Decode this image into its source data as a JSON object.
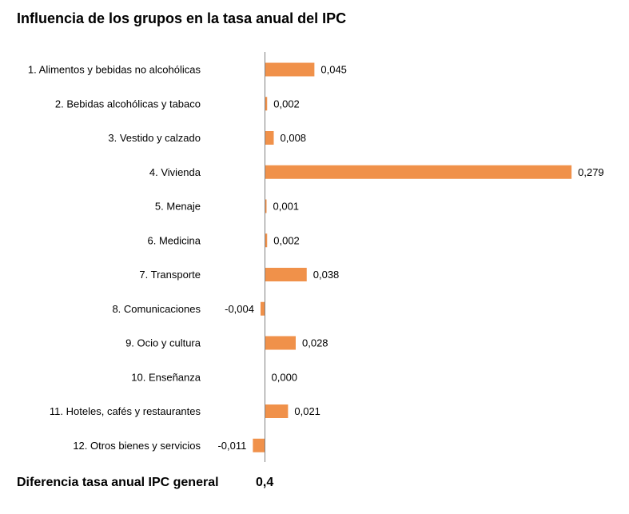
{
  "title": "Influencia de los grupos en la tasa anual del IPC",
  "footer": {
    "label": "Diferencia tasa anual IPC general",
    "value": "0,4"
  },
  "colors": {
    "bar": "#F0914A",
    "axis": "#7F7F7F"
  },
  "chart_data": {
    "type": "bar",
    "orientation": "horizontal",
    "categories": [
      "1. Alimentos y bebidas no alcohólicas",
      "2. Bebidas alcohólicas y tabaco",
      "3. Vestido y calzado",
      "4. Vivienda",
      "5. Menaje",
      "6. Medicina",
      "7. Transporte",
      "8. Comunicaciones",
      "9. Ocio y cultura",
      "10. Enseñanza",
      "11. Hoteles, cafés y restaurantes",
      "12. Otros bienes y servicios"
    ],
    "values": [
      0.045,
      0.002,
      0.008,
      0.279,
      0.001,
      0.002,
      0.038,
      -0.004,
      0.028,
      0.0,
      0.021,
      -0.011
    ],
    "value_labels": [
      "0,045",
      "0,002",
      "0,008",
      "0,279",
      "0,001",
      "0,002",
      "0,038",
      "-0,004",
      "0,028",
      "0,000",
      "0,021",
      "-0,011"
    ],
    "xlim": [
      -0.011,
      0.279
    ],
    "grid": false,
    "legend": "none"
  }
}
